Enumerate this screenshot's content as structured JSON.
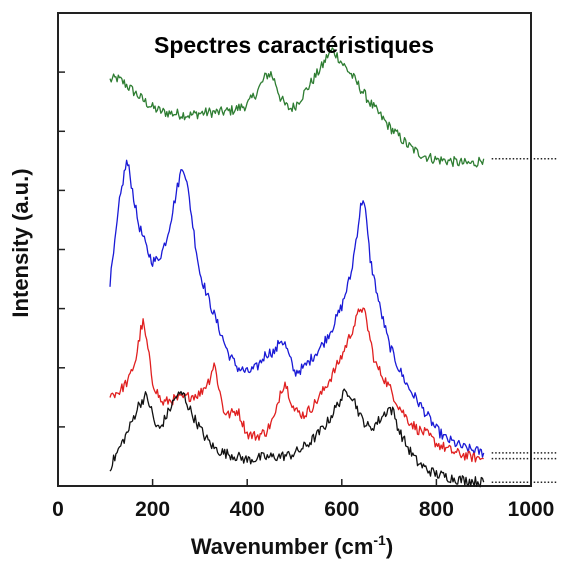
{
  "chart_data": {
    "type": "line",
    "title": "Spectres caractéristiques",
    "xlabel": {
      "main": "Wavenumber (cm",
      "sup": "-1",
      "close": ")"
    },
    "ylabel": "Intensity (a.u.)",
    "xlim": [
      0,
      1000
    ],
    "xticks": [
      "0",
      "200",
      "400",
      "600",
      "800",
      "1000"
    ],
    "ylim": [
      0,
      10
    ],
    "grid": false,
    "legend": "none",
    "series": [
      {
        "color": "#2e7d32",
        "x": [
          110,
          125,
          140,
          160,
          180,
          200,
          220,
          240,
          260,
          280,
          300,
          320,
          340,
          360,
          380,
          400,
          420,
          440,
          450,
          460,
          470,
          480,
          490,
          500,
          520,
          540,
          560,
          570,
          580,
          590,
          600,
          620,
          640,
          660,
          680,
          700,
          720,
          740,
          760,
          780,
          800,
          820,
          840,
          860,
          880,
          900
        ],
        "y": [
          8.58,
          8.62,
          8.52,
          8.34,
          8.16,
          8.0,
          7.91,
          7.88,
          7.86,
          7.84,
          7.88,
          7.9,
          7.9,
          7.92,
          7.98,
          8.06,
          8.32,
          8.68,
          8.72,
          8.52,
          8.22,
          8.05,
          7.98,
          8.02,
          8.3,
          8.6,
          8.9,
          9.1,
          9.22,
          9.1,
          8.95,
          8.7,
          8.4,
          8.1,
          7.85,
          7.6,
          7.4,
          7.2,
          7.05,
          6.96,
          6.9,
          6.88,
          6.85,
          6.82,
          6.82,
          6.92
        ]
      },
      {
        "color": "#1a1ad6",
        "x": [
          110,
          120,
          130,
          140,
          145,
          150,
          160,
          170,
          180,
          190,
          200,
          210,
          220,
          230,
          240,
          250,
          260,
          265,
          270,
          280,
          290,
          300,
          320,
          340,
          360,
          380,
          400,
          420,
          440,
          460,
          470,
          480,
          500,
          520,
          540,
          560,
          580,
          600,
          620,
          630,
          640,
          645,
          650,
          660,
          680,
          700,
          720,
          740,
          760,
          780,
          800,
          820,
          840,
          860,
          880,
          900
        ],
        "y": [
          4.3,
          5.1,
          6.0,
          6.6,
          6.85,
          6.7,
          6.1,
          5.55,
          5.25,
          4.95,
          4.75,
          4.78,
          4.95,
          5.25,
          5.7,
          6.2,
          6.65,
          6.75,
          6.55,
          5.9,
          5.15,
          4.5,
          3.9,
          3.35,
          2.8,
          2.5,
          2.4,
          2.5,
          2.8,
          2.85,
          3.1,
          3.0,
          2.4,
          2.5,
          2.75,
          3.0,
          3.35,
          3.8,
          4.5,
          5.2,
          5.9,
          6.1,
          5.8,
          4.8,
          3.8,
          3.0,
          2.5,
          2.1,
          1.8,
          1.5,
          1.2,
          1.0,
          0.9,
          0.8,
          0.75,
          0.7
        ]
      },
      {
        "color": "#e02020",
        "x": [
          110,
          130,
          150,
          165,
          175,
          180,
          190,
          200,
          220,
          240,
          260,
          280,
          300,
          320,
          330,
          340,
          350,
          360,
          380,
          400,
          420,
          440,
          460,
          470,
          480,
          490,
          500,
          520,
          540,
          560,
          580,
          600,
          620,
          630,
          640,
          650,
          670,
          700,
          720,
          740,
          760,
          780,
          800,
          820,
          840,
          860,
          880,
          900
        ],
        "y": [
          1.92,
          2.0,
          2.25,
          2.7,
          3.3,
          3.45,
          2.9,
          2.2,
          1.75,
          1.82,
          1.85,
          1.9,
          1.95,
          2.25,
          2.6,
          2.1,
          1.6,
          1.5,
          1.6,
          1.1,
          1.05,
          1.15,
          1.5,
          2.0,
          2.2,
          1.9,
          1.6,
          1.5,
          1.7,
          2.0,
          2.35,
          2.75,
          3.25,
          3.5,
          3.8,
          3.6,
          2.6,
          2.1,
          1.7,
          1.4,
          1.2,
          1.1,
          0.9,
          0.8,
          0.7,
          0.65,
          0.6,
          0.58
        ]
      },
      {
        "color": "#111111",
        "x": [
          110,
          130,
          150,
          170,
          185,
          195,
          205,
          215,
          225,
          235,
          250,
          265,
          275,
          290,
          310,
          330,
          350,
          370,
          400,
          430,
          460,
          490,
          510,
          530,
          550,
          570,
          590,
          605,
          615,
          625,
          640,
          660,
          680,
          700,
          710,
          720,
          740,
          760,
          780,
          800,
          820,
          840,
          860,
          880,
          900
        ],
        "y": [
          0.4,
          0.8,
          1.2,
          1.7,
          1.9,
          1.7,
          1.3,
          1.2,
          1.4,
          1.6,
          1.9,
          1.95,
          1.7,
          1.4,
          1.05,
          0.8,
          0.7,
          0.65,
          0.55,
          0.6,
          0.62,
          0.65,
          0.75,
          0.9,
          1.1,
          1.35,
          1.7,
          1.95,
          2.0,
          1.85,
          1.45,
          1.2,
          1.4,
          1.65,
          1.55,
          1.2,
          0.8,
          0.5,
          0.35,
          0.25,
          0.2,
          0.15,
          0.12,
          0.1,
          0.08
        ]
      }
    ]
  }
}
